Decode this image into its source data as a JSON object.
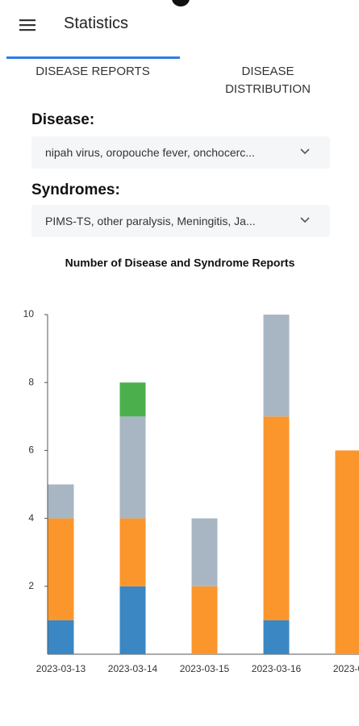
{
  "header": {
    "title": "Statistics"
  },
  "tabs": [
    "DISEASE REPORTS",
    "DISEASE DISTRIBUTION"
  ],
  "filters": [
    {
      "label": "Disease:",
      "value": "nipah virus, oropouche fever, onchocerc..."
    },
    {
      "label": "Syndromes:",
      "value": "PIMS-TS, other paralysis, Meningitis, Ja..."
    }
  ],
  "chart_data": {
    "type": "stacked-bar",
    "title": "Number of Disease and Syndrome Reports",
    "categories": [
      "2023-03-13",
      "2023-03-14",
      "2023-03-15",
      "2023-03-16",
      "2023-0"
    ],
    "series": [
      {
        "color": "#3a87c4",
        "values": [
          1,
          2,
          0,
          1,
          0
        ]
      },
      {
        "color": "#fb962c",
        "values": [
          3,
          2,
          2,
          6,
          6
        ]
      },
      {
        "color": "#a8b6c3",
        "values": [
          1,
          3,
          2,
          3,
          0
        ]
      },
      {
        "color": "#4bb04b",
        "values": [
          0,
          1,
          0,
          0,
          0
        ]
      }
    ],
    "ylim": [
      0,
      10
    ],
    "yticks": [
      2,
      4,
      6,
      8,
      10
    ]
  }
}
